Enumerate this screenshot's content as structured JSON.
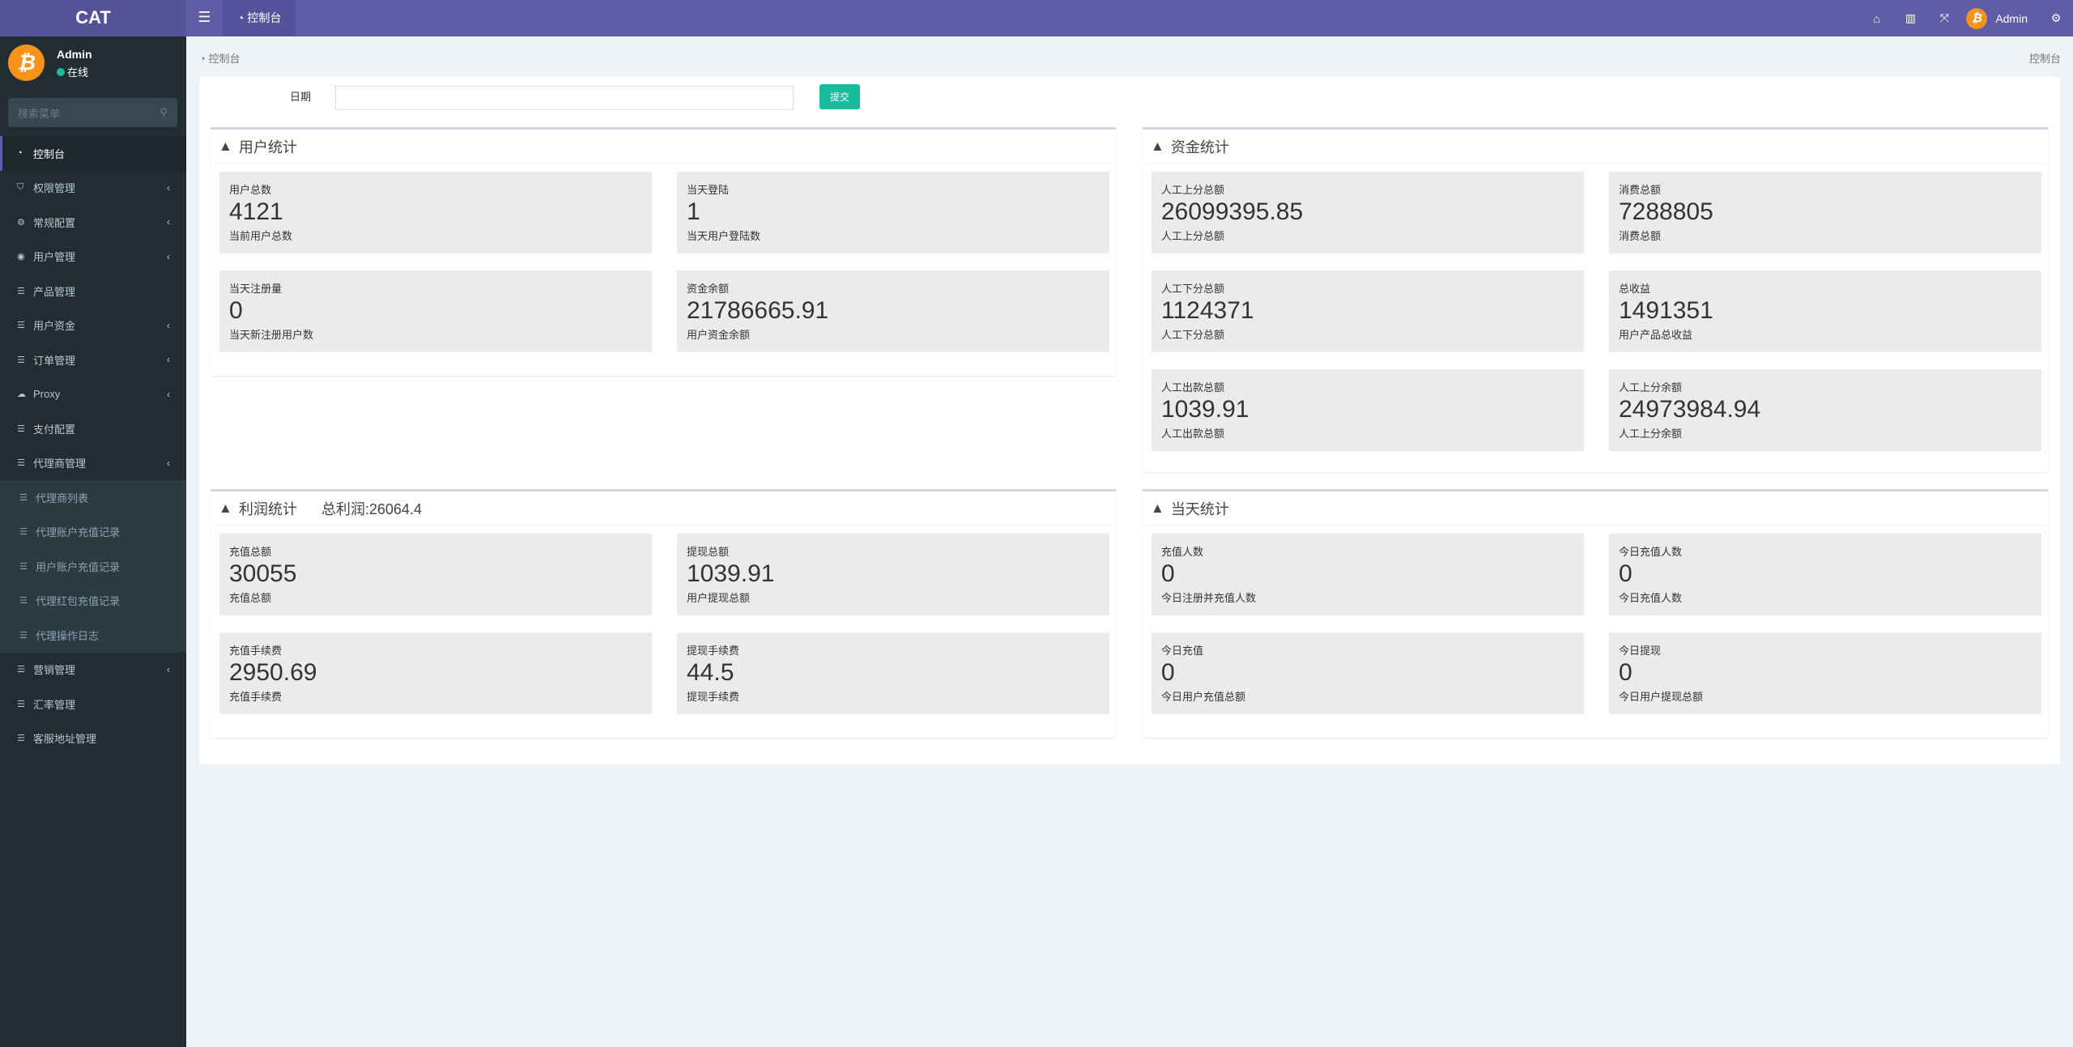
{
  "header": {
    "logo": "CAT",
    "tab": "控制台",
    "admin": "Admin",
    "icons": [
      "home-icon",
      "trash-icon",
      "fullscreen-icon",
      "gears-icon"
    ]
  },
  "sidebar": {
    "user": {
      "name": "Admin",
      "status": "在线"
    },
    "search_placeholder": "搜索菜单",
    "items": [
      {
        "label": "控制台",
        "icon": "dashboard-icon"
      },
      {
        "label": "权限管理",
        "icon": "shield-icon"
      },
      {
        "label": "常规配置",
        "icon": "cogs-icon"
      },
      {
        "label": "用户管理",
        "icon": "user-circle-icon"
      },
      {
        "label": "产品管理",
        "icon": "list-icon"
      },
      {
        "label": "用户资金",
        "icon": "list-icon"
      },
      {
        "label": "订单管理",
        "icon": "list-icon"
      },
      {
        "label": "Proxy",
        "icon": "cloud-icon"
      },
      {
        "label": "支付配置",
        "icon": "list-icon"
      },
      {
        "label": "代理商管理",
        "icon": "list-icon"
      }
    ],
    "sub_items": [
      "代理商列表",
      "代理账户充值记录",
      "用户账户充值记录",
      "代理红包充值记录",
      "代理操作日志"
    ],
    "items_after": [
      "营销管理",
      "汇率管理",
      "客服地址管理"
    ]
  },
  "breadcrumb": {
    "left": "控制台",
    "right": "控制台"
  },
  "filter": {
    "date_label": "日期",
    "date_value": "",
    "submit": "提交"
  },
  "user_stats": {
    "title": "用户统计",
    "cards": [
      {
        "label": "用户总数",
        "value": "4121",
        "sub": "当前用户总数"
      },
      {
        "label": "当天登陆",
        "value": "1",
        "sub": "当天用户登陆数"
      },
      {
        "label": "当天注册量",
        "value": "0",
        "sub": "当天新注册用户数"
      },
      {
        "label": "资金余额",
        "value": "21786665.91",
        "sub": "用户资金余额"
      }
    ]
  },
  "fund_stats": {
    "title": "资金统计",
    "cards": [
      {
        "label": "人工上分总额",
        "value": "26099395.85",
        "sub": "人工上分总额"
      },
      {
        "label": "消费总额",
        "value": "7288805",
        "sub": "消费总额"
      },
      {
        "label": "人工下分总额",
        "value": "1124371",
        "sub": "人工下分总额"
      },
      {
        "label": "总收益",
        "value": "1491351",
        "sub": "用户产品总收益"
      },
      {
        "label": "人工出款总额",
        "value": "1039.91",
        "sub": "人工出款总额"
      },
      {
        "label": "人工上分余额",
        "value": "24973984.94",
        "sub": "人工上分余额"
      }
    ]
  },
  "profit_stats": {
    "title": "利润统计",
    "total": "总利润:26064.4",
    "cards": [
      {
        "label": "充值总额",
        "value": "30055",
        "sub": "充值总额"
      },
      {
        "label": "提现总额",
        "value": "1039.91",
        "sub": "用户提现总额"
      },
      {
        "label": "充值手续费",
        "value": "2950.69",
        "sub": "充值手续费"
      },
      {
        "label": "提现手续费",
        "value": "44.5",
        "sub": "提现手续费"
      }
    ]
  },
  "today_stats": {
    "title": "当天统计",
    "cards": [
      {
        "label": "充值人数",
        "value": "0",
        "sub": "今日注册并充值人数"
      },
      {
        "label": "今日充值人数",
        "value": "0",
        "sub": "今日充值人数"
      },
      {
        "label": "今日充值",
        "value": "0",
        "sub": "今日用户充值总额"
      },
      {
        "label": "今日提现",
        "value": "0",
        "sub": "今日用户提现总额"
      }
    ]
  },
  "colors": {
    "header": "#605ca8",
    "sidebar": "#222d32",
    "accent": "#18bc9c",
    "card": "#ebebeb"
  }
}
